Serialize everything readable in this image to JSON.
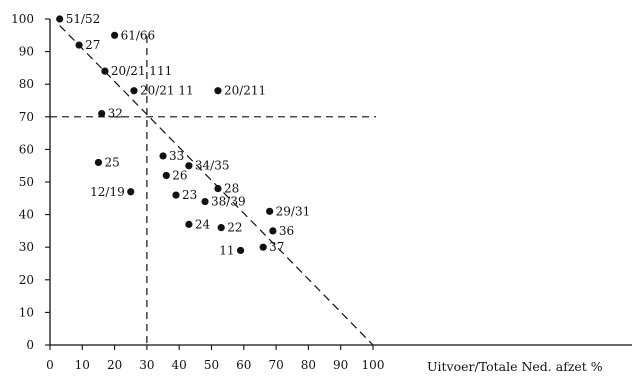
{
  "chart_data": {
    "type": "scatter",
    "title": "",
    "xlabel": "Uitvoer/Totale Ned. afzet %",
    "ylabel": "",
    "xlim": [
      0,
      100
    ],
    "ylim": [
      0,
      100
    ],
    "x_ticks": [
      "0",
      "10",
      "20",
      "30",
      "40",
      "50",
      "60",
      "70",
      "80",
      "90",
      "100"
    ],
    "y_ticks": [
      "0",
      "10",
      "20",
      "30",
      "40",
      "50",
      "60",
      "70",
      "80",
      "90",
      "100"
    ],
    "grid": false,
    "reference_lines": {
      "vertical_x": 30,
      "horizontal_y": 70
    },
    "trend_line": {
      "from": [
        3,
        98
      ],
      "to": [
        100,
        0
      ]
    },
    "points": [
      {
        "label": "51/52",
        "x": 3,
        "y": 100,
        "label_side": "right"
      },
      {
        "label": "27",
        "x": 9,
        "y": 92,
        "label_side": "right"
      },
      {
        "label": "61/66",
        "x": 20,
        "y": 95,
        "label_side": "right"
      },
      {
        "label": "20/21 111",
        "x": 17,
        "y": 84,
        "label_side": "right"
      },
      {
        "label": "20/21 11",
        "x": 26,
        "y": 78,
        "label_side": "right"
      },
      {
        "label": "20/211",
        "x": 52,
        "y": 78,
        "label_side": "right"
      },
      {
        "label": "32",
        "x": 16,
        "y": 71,
        "label_side": "right"
      },
      {
        "label": "33",
        "x": 35,
        "y": 58,
        "label_side": "right"
      },
      {
        "label": "25",
        "x": 15,
        "y": 56,
        "label_side": "right"
      },
      {
        "label": "34/35",
        "x": 43,
        "y": 55,
        "label_side": "right"
      },
      {
        "label": "26",
        "x": 36,
        "y": 52,
        "label_side": "right"
      },
      {
        "label": "28",
        "x": 52,
        "y": 48,
        "label_side": "right"
      },
      {
        "label": "12/19",
        "x": 25,
        "y": 47,
        "label_side": "left"
      },
      {
        "label": "23",
        "x": 39,
        "y": 46,
        "label_side": "right"
      },
      {
        "label": "38/39",
        "x": 48,
        "y": 44,
        "label_side": "right"
      },
      {
        "label": "29/31",
        "x": 68,
        "y": 41,
        "label_side": "right"
      },
      {
        "label": "24",
        "x": 43,
        "y": 37,
        "label_side": "right"
      },
      {
        "label": "22",
        "x": 53,
        "y": 36,
        "label_side": "right"
      },
      {
        "label": "36",
        "x": 69,
        "y": 35,
        "label_side": "right"
      },
      {
        "label": "11",
        "x": 59,
        "y": 29,
        "label_side": "left"
      },
      {
        "label": "37",
        "x": 66,
        "y": 30,
        "label_side": "right"
      }
    ]
  }
}
